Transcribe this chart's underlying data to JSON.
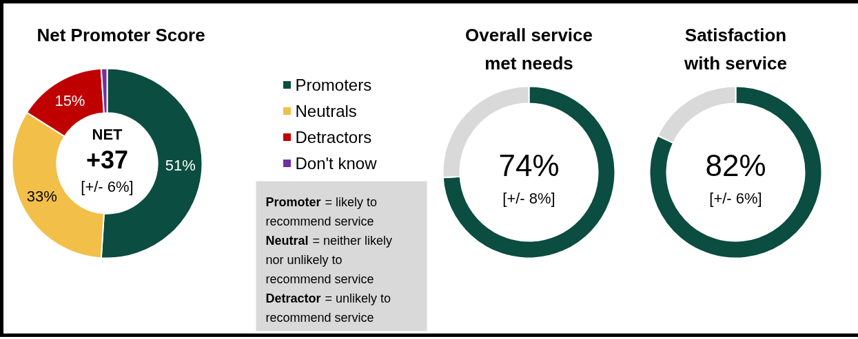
{
  "chart_data": [
    {
      "type": "donut",
      "title": "Net Promoter Score",
      "categories": [
        "Promoters",
        "Neutrals",
        "Detractors",
        "Don't know"
      ],
      "values": [
        51,
        33,
        15,
        1
      ],
      "colors": [
        "#0b4d40",
        "#f2bf48",
        "#c00000",
        "#7030a0"
      ],
      "value_labels": [
        "51%",
        "33%",
        "15%",
        null
      ],
      "legend": "right",
      "annotations": [
        "NET",
        "+37",
        "[+/- 6%]"
      ]
    },
    {
      "type": "other",
      "annotations": [
        "Promoter = likely to recommend service",
        "Neutral = neither likely nor unlikely to recommend service",
        "Detractor = unlikely to recommend service"
      ]
    },
    {
      "type": "donut",
      "title": "Overall service met needs",
      "categories": [
        null,
        null
      ],
      "values": [
        74,
        26
      ],
      "colors": [
        "#0b4d40",
        "#d9d9d9"
      ],
      "annotations": [
        "74%",
        "[+/- 8%]"
      ]
    },
    {
      "type": "donut",
      "title": "Satisfaction with service",
      "categories": [
        null,
        null
      ],
      "values": [
        82,
        18
      ],
      "colors": [
        "#0b4d40",
        "#d9d9d9"
      ],
      "annotations": [
        "82%",
        "[+/- 6%]"
      ]
    }
  ]
}
